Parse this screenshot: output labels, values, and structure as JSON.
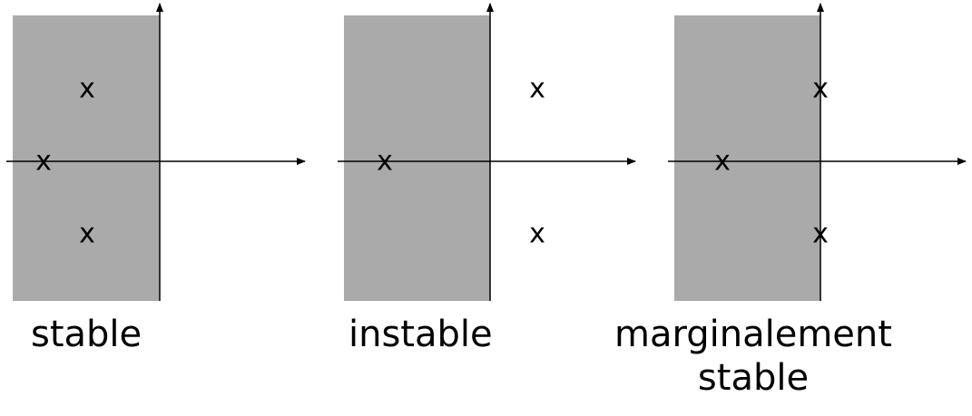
{
  "diagrams": [
    {
      "id": "stable",
      "caption_lines": [
        "stable"
      ],
      "stable_region_color": "#aaaaaa",
      "poles": [
        {
          "re": -2,
          "im": 2
        },
        {
          "re": -2,
          "im": -2
        },
        {
          "re": -3.2,
          "im": 0
        }
      ]
    },
    {
      "id": "instable",
      "caption_lines": [
        "instable"
      ],
      "stable_region_color": "#aaaaaa",
      "poles": [
        {
          "re": 1.3,
          "im": 2
        },
        {
          "re": 1.3,
          "im": -2
        },
        {
          "re": -2.9,
          "im": 0
        }
      ]
    },
    {
      "id": "marginal",
      "caption_lines": [
        "marginalement",
        "stable"
      ],
      "stable_region_color": "#aaaaaa",
      "poles": [
        {
          "re": 0,
          "im": 2
        },
        {
          "re": 0,
          "im": -2
        },
        {
          "re": -2.7,
          "im": 0
        }
      ]
    }
  ],
  "pole_marker": "x",
  "axis_color": "#000000"
}
